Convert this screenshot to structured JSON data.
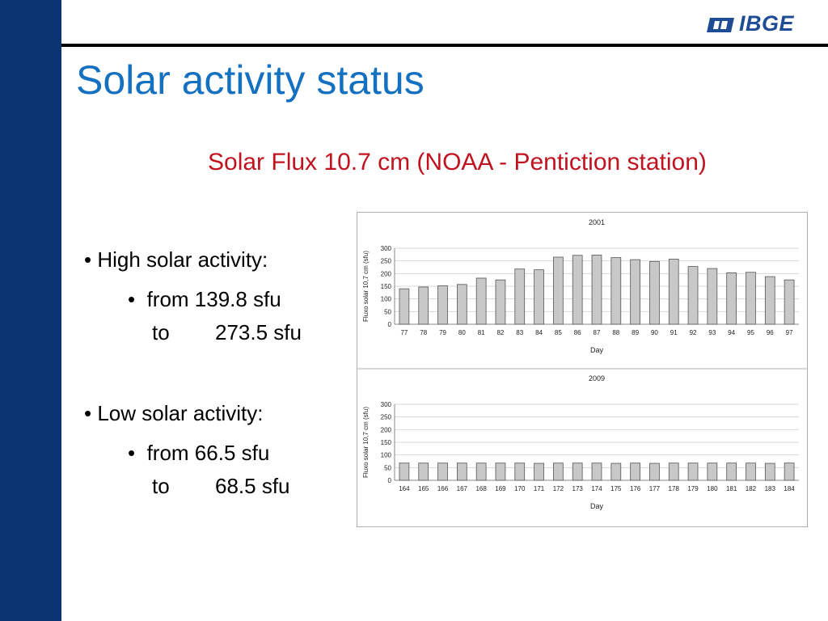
{
  "slide": {
    "title": "Solar activity status",
    "subtitle": "Solar Flux 10.7 cm (NOAA - Pentiction station)",
    "logo_text": "IBGE"
  },
  "bullets": [
    {
      "label": "• High solar activity:",
      "from_word": "from",
      "from_value": "139.8 sfu",
      "to_word": "to",
      "to_value": "273.5 sfu"
    },
    {
      "label": "• Low solar activity:",
      "from_word": "from",
      "from_value": "66.5 sfu",
      "to_word": "to",
      "to_value": "68.5 sfu"
    }
  ],
  "colors": {
    "sidebar": "#0a3572",
    "title": "#1470c0",
    "subtitle": "#c0121f",
    "bar_fill": "#c8c8c8",
    "bar_stroke": "#555555"
  },
  "chart_data": [
    {
      "type": "bar",
      "title": "2001",
      "xlabel": "Day",
      "ylabel": "Fluxo solar 10,7 cm (sfu)",
      "ylim": [
        0,
        300
      ],
      "yticks": [
        0,
        50,
        100,
        150,
        200,
        250,
        300
      ],
      "grid": true,
      "categories": [
        "77",
        "78",
        "79",
        "80",
        "81",
        "82",
        "83",
        "84",
        "85",
        "86",
        "87",
        "88",
        "89",
        "90",
        "91",
        "92",
        "93",
        "94",
        "95",
        "96",
        "97"
      ],
      "values": [
        140,
        147,
        152,
        157,
        182,
        175,
        218,
        215,
        265,
        272,
        273,
        263,
        255,
        248,
        257,
        228,
        220,
        203,
        205,
        188,
        175
      ]
    },
    {
      "type": "bar",
      "title": "2009",
      "xlabel": "Day",
      "ylabel": "Fluxo solar 10,7 cm (sfu)",
      "ylim": [
        0,
        300
      ],
      "yticks": [
        0,
        50,
        100,
        150,
        200,
        250,
        300
      ],
      "grid": true,
      "categories": [
        "164",
        "165",
        "166",
        "167",
        "168",
        "169",
        "170",
        "171",
        "172",
        "173",
        "174",
        "175",
        "176",
        "177",
        "178",
        "179",
        "180",
        "181",
        "182",
        "183",
        "184"
      ],
      "values": [
        68,
        68,
        68,
        68,
        68,
        68,
        68,
        67,
        68,
        68,
        68,
        67,
        68,
        67,
        68,
        68,
        68,
        68,
        68,
        67,
        68
      ]
    }
  ]
}
